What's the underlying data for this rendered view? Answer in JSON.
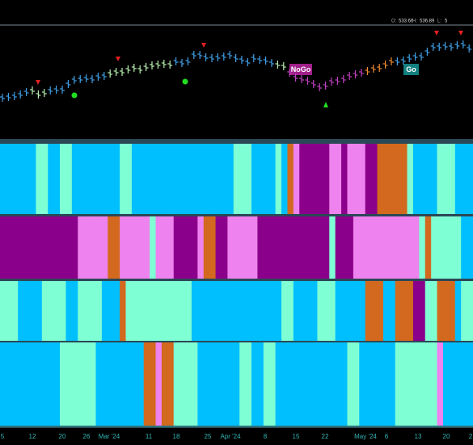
{
  "header": {
    "ohlc": [
      {
        "label": "O:",
        "value": "533.66"
      },
      {
        "label": "H:",
        "value": "536.89"
      },
      {
        "label": "L:",
        "value": "5"
      }
    ]
  },
  "chart_data": {
    "type": "price",
    "values": [
      504.5,
      505,
      505.5,
      506.5,
      508,
      509,
      506.5,
      507.5,
      509,
      509.5,
      509.5,
      513,
      515.5,
      516,
      516.5,
      516,
      517.5,
      518,
      519.5,
      520.5,
      520.5,
      522,
      523,
      522,
      523.5,
      524.5,
      525,
      525.5,
      525,
      527,
      526,
      527,
      531,
      531,
      529.5,
      529,
      529.5,
      530,
      531,
      529,
      528,
      526.5,
      529,
      528,
      527.5,
      526,
      525,
      524,
      520,
      517,
      516,
      515,
      513,
      511,
      512,
      514.5,
      515,
      516,
      518,
      519,
      520,
      521,
      522.5,
      523,
      525,
      527,
      527,
      527.5,
      529,
      530,
      530,
      533,
      536,
      536,
      536.5,
      536,
      537,
      537.5,
      535
    ],
    "bar_colors": "BBBBBGGGBBBBBBBBBBGGGGGGGGGGGBBBBBBBBBBBBBBBBBGGPPPPPPPPPPPPPOOOOOBBBBBBBBBBBBB",
    "palette": {
      "B": "#3fa0e8",
      "G": "#b8f0b0",
      "P": "#c040c0",
      "O": "#f08a30",
      "C": "#00bfff",
      "A": "#7fffd4",
      "M": "#8b008b",
      "V": "#ee82ee",
      "R": "#d2691e"
    },
    "ylim": [
      480,
      550
    ],
    "annotations": [
      "NoGo",
      "Go"
    ],
    "heatmap_rows": [
      "CCCCCCAACCAACCCCCCCCAACCCCCCCCCCCCCCCCCAAACCCCACRVMMMMMVVMVVVMMRRRRRACCCCAAACCC",
      "MMMMMMMMMMMMMVVVVVRRVVVVVAVVVMMMMVRRMMVVVVVMMMMMMMMMMMMAMMMVVVVVVVVVVVARAAAAACC",
      "AAACCCCAAAACCAAAACCCRAAAAAAAAAAACCCCCCCCCCCCCCCAACCCCAAACCCCCRRRCCRRRMMAARRRCAA",
      "CCCCCCCCCCAAAAAACCCCCCCCRRVRRAAAACCCCCCCAACCAACCCCCCCCCCCCAACCCCCCAAAAAAAVCCCCC"
    ],
    "x_labels": [
      "5",
      "12",
      "20",
      "26",
      "Mar '24",
      "11",
      "18",
      "25",
      "Apr '24",
      "8",
      "15",
      "22",
      "May '24",
      "6",
      "13",
      "20",
      "2"
    ]
  }
}
